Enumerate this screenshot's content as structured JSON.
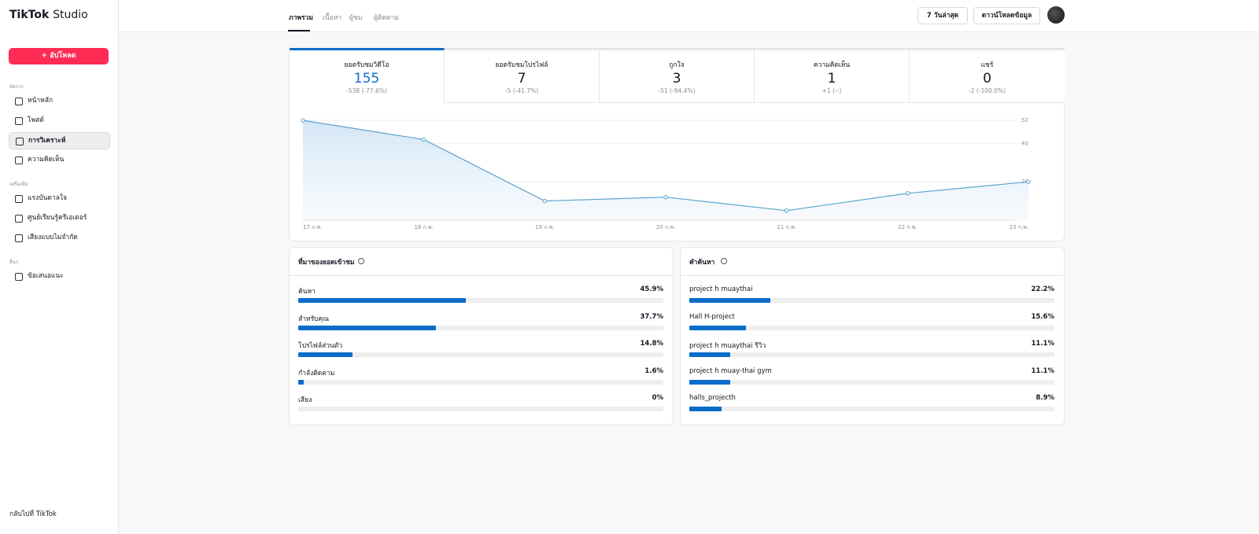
{
  "brand": {
    "logo": "TikTok",
    "suffix": "Studio"
  },
  "sidebar": {
    "upload": "+ อัปโหลด",
    "sections": [
      {
        "title": "จัดการ",
        "items": [
          {
            "label": "หน้าหลัก",
            "selected": false
          },
          {
            "label": "โพสต์",
            "selected": false
          },
          {
            "label": "การวิเคราะห์",
            "selected": true
          },
          {
            "label": "ความคิดเห็น",
            "selected": false
          }
        ]
      },
      {
        "title": "เครื่องมือ",
        "items": [
          {
            "label": "แรงบันดาลใจ",
            "selected": false
          },
          {
            "label": "ศูนย์เรียนรู้ครีเอเตอร์",
            "selected": false
          },
          {
            "label": "เสียงแบบไม่จำกัด",
            "selected": false
          }
        ]
      },
      {
        "title": "อื่นๆ",
        "items": [
          {
            "label": "ข้อเสนอแนะ",
            "selected": false
          }
        ]
      }
    ],
    "back": "กลับไปที่ TikTok"
  },
  "tabs": [
    {
      "label": "ภาพรวม",
      "selected": true
    },
    {
      "label": "เนื้อหา",
      "selected": false
    },
    {
      "label": "ผู้ชม",
      "selected": false
    },
    {
      "label": "ผู้ติดตาม",
      "selected": false
    }
  ],
  "controls": {
    "range": "7 วันล่าสุด",
    "download": "ดาวน์โหลดข้อมูล"
  },
  "metrics": [
    {
      "label": "ยอดรับชมวิดีโอ",
      "value": 155,
      "change": "-538 (-77.6%)",
      "selected": true
    },
    {
      "label": "ยอดรับชมโปรไฟล์",
      "value": 7,
      "change": "-5 (-41.7%)",
      "selected": false
    },
    {
      "label": "ถูกใจ",
      "value": 3,
      "change": "-51 (-94.4%)",
      "selected": false
    },
    {
      "label": "ความคิดเห็น",
      "value": 1,
      "change": "+1 (--)",
      "selected": false
    },
    {
      "label": "แชร์",
      "value": 0,
      "change": "-2 (-100.0%)",
      "selected": false
    }
  ],
  "chart_data": {
    "type": "line",
    "categories": [
      "17 ก.พ.",
      "18 ก.พ.",
      "19 ก.พ.",
      "20 ก.พ.",
      "21 ก.พ.",
      "22 ก.พ.",
      "23 ก.พ."
    ],
    "values": [
      52,
      42,
      10,
      12,
      5,
      14,
      20
    ],
    "color": "#5ba3d0",
    "ylim": [
      0,
      52
    ],
    "yticks": [
      20,
      40,
      52
    ],
    "grid": true
  },
  "traffic": {
    "title": "ที่มาของยอดเข้าชม",
    "rows": [
      {
        "name": "ค้นหา",
        "value": 45.9,
        "label": "45.9%"
      },
      {
        "name": "สำหรับคุณ",
        "value": 37.7,
        "label": "37.7%"
      },
      {
        "name": "โปรไฟล์ส่วนตัว",
        "value": 14.8,
        "label": "14.8%"
      },
      {
        "name": "กำลังติดตาม",
        "value": 1.6,
        "label": "1.6%"
      },
      {
        "name": "เสียง",
        "value": 0,
        "label": "0%"
      }
    ]
  },
  "search": {
    "title": "คำค้นหา",
    "rows": [
      {
        "name": "project h muaythai",
        "value": 22.2,
        "label": "22.2%"
      },
      {
        "name": "Hall H-project",
        "value": 15.6,
        "label": "15.6%"
      },
      {
        "name": "project h muaythai รีวิว",
        "value": 11.1,
        "label": "11.1%"
      },
      {
        "name": "project h muay-thai gym",
        "value": 11.1,
        "label": "11.1%"
      },
      {
        "name": "halls_projecth",
        "value": 8.9,
        "label": "8.9%"
      }
    ]
  }
}
